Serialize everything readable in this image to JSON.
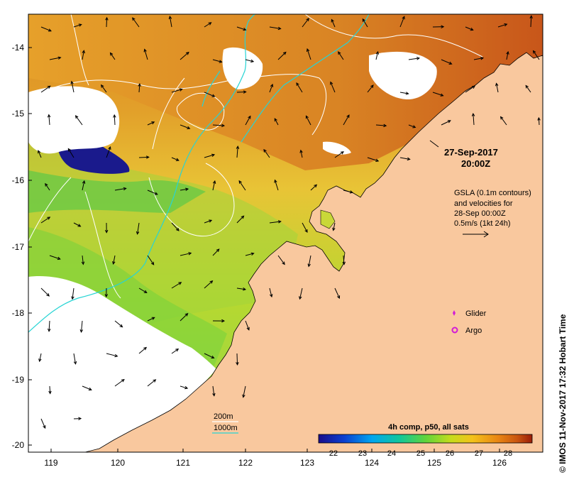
{
  "x_ticks": [
    "119",
    "120",
    "121",
    "122",
    "123",
    "124",
    "125",
    "126"
  ],
  "y_ticks": [
    "-14",
    "-15",
    "-16",
    "-17",
    "-18",
    "-19",
    "-20"
  ],
  "timestamp": {
    "date": "27-Sep-2017",
    "time": "20:00Z"
  },
  "gsla_note": {
    "line1": "GSLA (0.1m contours)",
    "line2": "and velocities for",
    "line3": "28-Sep 00:00Z",
    "line4": "0.5m/s (1kt 24h)"
  },
  "legend": {
    "glider": "Glider",
    "argo": "Argo"
  },
  "depth_legend": {
    "d200": "200m",
    "d1000": "1000m"
  },
  "colorbar": {
    "title": "4h comp, p50, all sats",
    "ticks": [
      "22",
      "23",
      "24",
      "25",
      "26",
      "27",
      "28"
    ],
    "colors": [
      "#1a0d8a",
      "#0b3fd0",
      "#00a6ef",
      "#12c79a",
      "#5fd43c",
      "#c6dc1c",
      "#f3c21a",
      "#e98614",
      "#c95510",
      "#9a1d08"
    ]
  },
  "credit": "© IMOS 11-Nov-2017 17:32 Hobart Time",
  "colors": {
    "land": "#f9c89e",
    "warm": "#d98a24",
    "mid": "#e6c23c",
    "cool": "#4cc84a",
    "cold": "#1a1a8c",
    "contour": "#ffffff",
    "isobath1000": "#27d4d4",
    "glider": "#d21ad6"
  }
}
